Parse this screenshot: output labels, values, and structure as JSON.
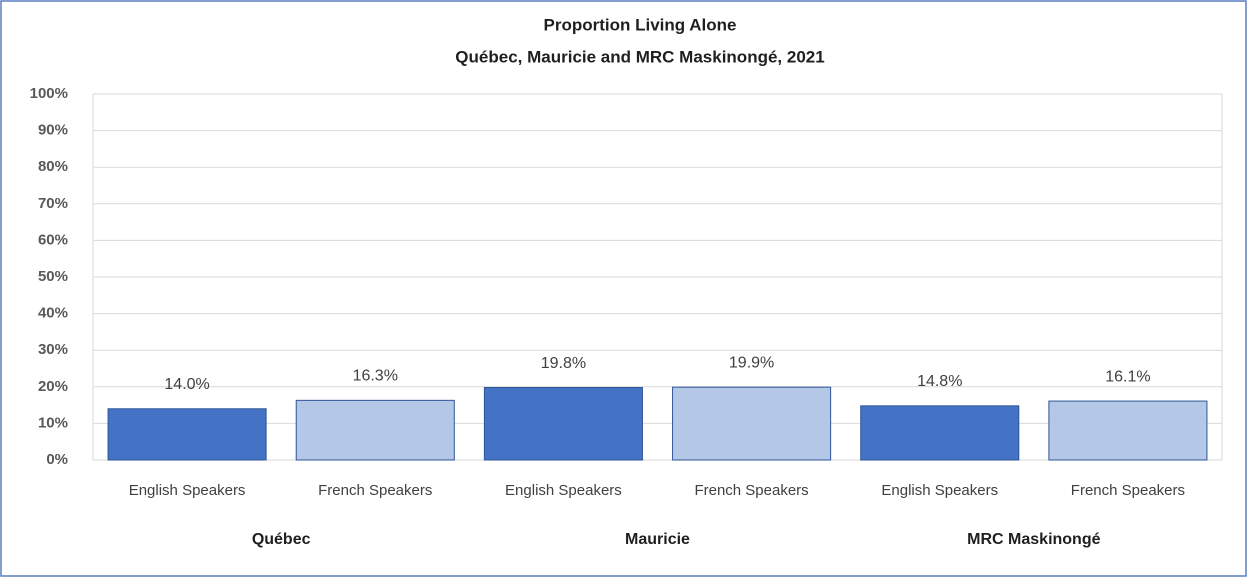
{
  "chart_data": {
    "type": "bar",
    "title": "Proportion Living Alone",
    "subtitle": "Québec, Mauricie and MRC Maskinongé,  2021",
    "categories": [
      "English Speakers",
      "French Speakers",
      "English Speakers",
      "French Speakers",
      "English Speakers",
      "French Speakers"
    ],
    "groups": [
      "Québec",
      "Mauricie",
      "MRC Maskinongé"
    ],
    "values": [
      14.0,
      16.3,
      19.8,
      19.9,
      14.8,
      16.1
    ],
    "value_labels": [
      "14.0%",
      "16.3%",
      "19.8%",
      "19.9%",
      "14.8%",
      "16.1%"
    ],
    "colors": [
      "#4472c4",
      "#b4c7e7",
      "#4472c4",
      "#b4c7e7",
      "#4472c4",
      "#b4c7e7"
    ],
    "ylim": [
      0,
      100
    ],
    "yticks": [
      {
        "value": 0,
        "label": "0%"
      },
      {
        "value": 10,
        "label": "10%"
      },
      {
        "value": 20,
        "label": "20%"
      },
      {
        "value": 30,
        "label": "30%"
      },
      {
        "value": 40,
        "label": "40%"
      },
      {
        "value": 50,
        "label": "50%"
      },
      {
        "value": 60,
        "label": "60%"
      },
      {
        "value": 70,
        "label": "70%"
      },
      {
        "value": 80,
        "label": "80%"
      },
      {
        "value": 90,
        "label": "90%"
      },
      {
        "value": 100,
        "label": "100%"
      }
    ],
    "grid": true
  }
}
